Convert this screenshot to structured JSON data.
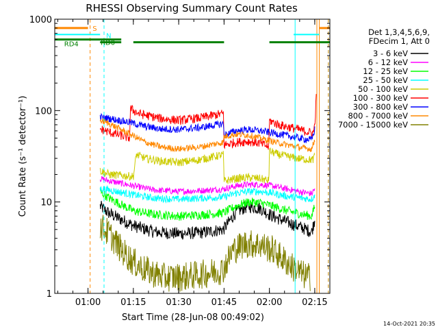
{
  "chart_data": {
    "type": "line",
    "title": "RHESSI Observing Summary Count Rates",
    "xlabel": "Start Time (28-Jun-08 00:49:02)",
    "ylabel": "Count Rate (s⁻¹ detector⁻¹)",
    "y_scale": "log",
    "ylim": [
      1,
      1000
    ],
    "xlim_minutes_after_00_49_02": [
      0,
      91
    ],
    "x_ticks": [
      {
        "label": "01:00",
        "t": 11
      },
      {
        "label": "01:15",
        "t": 26
      },
      {
        "label": "01:30",
        "t": 41
      },
      {
        "label": "01:45",
        "t": 56
      },
      {
        "label": "02:00",
        "t": 71
      },
      {
        "label": "02:15",
        "t": 86
      }
    ],
    "y_ticks": [
      {
        "label": "1",
        "v": 1
      },
      {
        "label": "10",
        "v": 10
      },
      {
        "label": "100",
        "v": 100
      },
      {
        "label": "1000",
        "v": 1000
      }
    ],
    "legend_header": [
      "Det 1,3,4,5,6,9,",
      "FDecim 1, Att 0"
    ],
    "legend_position": "right",
    "timestamp": "14-Oct-2021 20:35",
    "series": [
      {
        "name": "3 - 6 keV",
        "color": "#000000",
        "x": [
          15,
          18,
          26,
          33,
          41,
          48,
          55.8,
          60,
          64,
          68,
          72,
          77,
          82,
          85,
          86
        ],
        "y": [
          9,
          7.5,
          5.5,
          4.7,
          4.5,
          4.6,
          5,
          7.8,
          9,
          8.5,
          7,
          6,
          5.2,
          4.7,
          6.5
        ]
      },
      {
        "name": "6 - 12 keV",
        "color": "#ff00ff",
        "x": [
          15,
          18,
          26,
          33,
          41,
          48,
          55.8,
          60,
          64,
          68,
          72,
          77,
          82,
          85,
          86
        ],
        "y": [
          18,
          17,
          15,
          13.5,
          13,
          13.3,
          13.8,
          15,
          15.5,
          15.5,
          15,
          13.8,
          12.8,
          12.3,
          14
        ]
      },
      {
        "name": "12 - 25 keV",
        "color": "#00ff00",
        "x": [
          15,
          18,
          26,
          33,
          41,
          48,
          55.8,
          60,
          64,
          68,
          72,
          77,
          82,
          85,
          86
        ],
        "y": [
          13,
          11,
          8,
          7.3,
          7,
          7.2,
          7.6,
          9,
          10,
          9.8,
          9,
          8,
          7.3,
          7,
          9
        ]
      },
      {
        "name": "25 - 50 keV",
        "color": "#00ffff",
        "x": [
          15,
          18,
          26,
          33,
          41,
          48,
          55.8,
          60,
          64,
          68,
          72,
          77,
          82,
          85,
          86
        ],
        "y": [
          14,
          13.5,
          12,
          11,
          10.7,
          11,
          11.3,
          12.5,
          13,
          13,
          12.5,
          11.5,
          11,
          10.7,
          12
        ]
      },
      {
        "name": "50 - 100 keV",
        "color": "#cccc00",
        "x": [
          15,
          18,
          26,
          27,
          30,
          35,
          41,
          48,
          55.8,
          56,
          60,
          64,
          68,
          70.8,
          71,
          74,
          80,
          84,
          85.5,
          86
        ],
        "y": [
          22,
          20,
          19,
          33,
          30,
          28,
          27,
          29,
          33,
          17,
          18,
          18.5,
          18,
          17,
          36,
          33,
          30,
          29,
          29,
          32
        ]
      },
      {
        "name": "100 - 300 keV",
        "color": "#ff0000",
        "x": [
          15,
          18,
          24.8,
          25,
          28,
          35,
          41,
          48,
          55.8,
          56,
          60,
          64,
          68,
          70.8,
          71,
          74,
          80,
          84,
          85.5,
          86,
          86.5
        ],
        "y": [
          63,
          58,
          50,
          105,
          92,
          82,
          78,
          83,
          93,
          42,
          45,
          46,
          44,
          40,
          78,
          70,
          63,
          58,
          57,
          70,
          140
        ]
      },
      {
        "name": "300 - 800 keV",
        "color": "#0000ff",
        "x": [
          15,
          18,
          25,
          30,
          35,
          41,
          48,
          55.8,
          56,
          60,
          64,
          68,
          72,
          77,
          82,
          85,
          86
        ],
        "y": [
          85,
          82,
          74,
          67,
          63,
          62,
          65,
          72,
          54,
          60,
          62,
          60,
          57,
          53,
          49,
          48,
          62
        ]
      },
      {
        "name": "800 - 7000 keV",
        "color": "#ff8800",
        "x": [
          15,
          18,
          25,
          30,
          35,
          41,
          48,
          55.8,
          56,
          60,
          64,
          68,
          72,
          77,
          82,
          85,
          86
        ],
        "y": [
          78,
          72,
          55,
          45,
          40,
          38,
          40,
          45,
          52,
          55,
          54,
          50,
          46,
          42,
          39,
          38,
          48
        ]
      },
      {
        "name": "7000 - 15000 keV",
        "color": "#808000",
        "x": [
          15,
          18,
          22,
          26,
          30,
          36,
          41,
          48,
          55.5,
          59,
          63,
          68,
          72,
          76,
          79,
          82,
          84.5
        ],
        "y": [
          5.5,
          4.5,
          3,
          2.2,
          1.8,
          1.5,
          1.5,
          1.6,
          1.8,
          3,
          3.5,
          3.4,
          3,
          2.3,
          1.9,
          1.6,
          1.5
        ]
      }
    ],
    "state_bars": [
      {
        "label": "S",
        "color": "#ff8800",
        "v": 800,
        "segments": [
          [
            0,
            11
          ],
          [
            87.5,
            91
          ]
        ]
      },
      {
        "label": "N",
        "color": "#00ffff",
        "v": 680,
        "segments": [
          [
            0,
            15
          ],
          [
            79,
            87.5
          ]
        ]
      },
      {
        "label": "RD4",
        "color": "#008000",
        "v": 600,
        "segments": [
          [
            0,
            22
          ]
        ]
      },
      {
        "label": "RD0",
        "color": "#008000",
        "v": 560,
        "segments": [
          [
            15,
            22
          ],
          [
            26,
            56
          ],
          [
            71,
            91
          ]
        ]
      }
    ],
    "vertical_markers": [
      {
        "t": 11.7,
        "color": "#ff8800",
        "style": "dashed"
      },
      {
        "t": 16.3,
        "color": "#00ffff",
        "style": "dashed"
      },
      {
        "t": 79.5,
        "color": "#00ffff",
        "style": "solid"
      },
      {
        "t": 86.7,
        "color": "#ff8800",
        "style": "solid"
      },
      {
        "t": 87.5,
        "color": "#ff8800",
        "style": "solid"
      },
      {
        "t": 90.5,
        "color": "#00ffff",
        "style": "dashed"
      },
      {
        "t": 90.5,
        "color": "#ff8800",
        "style": "dashed"
      }
    ]
  }
}
